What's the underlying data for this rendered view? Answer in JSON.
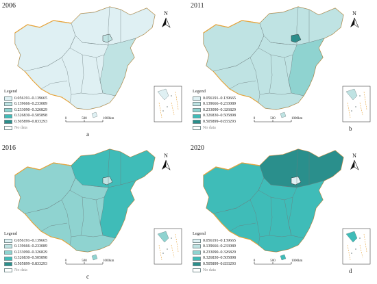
{
  "legend": {
    "title": "Legend",
    "classes": [
      {
        "label": "0.056191–0.139665",
        "color": "#dff0f3"
      },
      {
        "label": "0.139666–0.233089",
        "color": "#bfe3e3"
      },
      {
        "label": "0.233090–0.326829",
        "color": "#8fd3d0"
      },
      {
        "label": "0.326830–0.505898",
        "color": "#3fbcb8"
      },
      {
        "label": "0.505899–0.833293",
        "color": "#2a8f8c"
      }
    ],
    "nodata_label": "No data"
  },
  "scale": {
    "zero": "0",
    "mid": "500",
    "end": "1000km"
  },
  "north_label": "N",
  "panels": [
    {
      "year": "2006",
      "letter": "a",
      "fill_class": 0,
      "east_class": 1,
      "core_class": 1
    },
    {
      "year": "2011",
      "letter": "b",
      "fill_class": 1,
      "east_class": 2,
      "core_class": 4
    },
    {
      "year": "2016",
      "letter": "c",
      "fill_class": 2,
      "east_class": 3,
      "core_class": 1
    },
    {
      "year": "2020",
      "letter": "d",
      "fill_class": 3,
      "east_class": 3,
      "core_class": 0
    }
  ]
}
